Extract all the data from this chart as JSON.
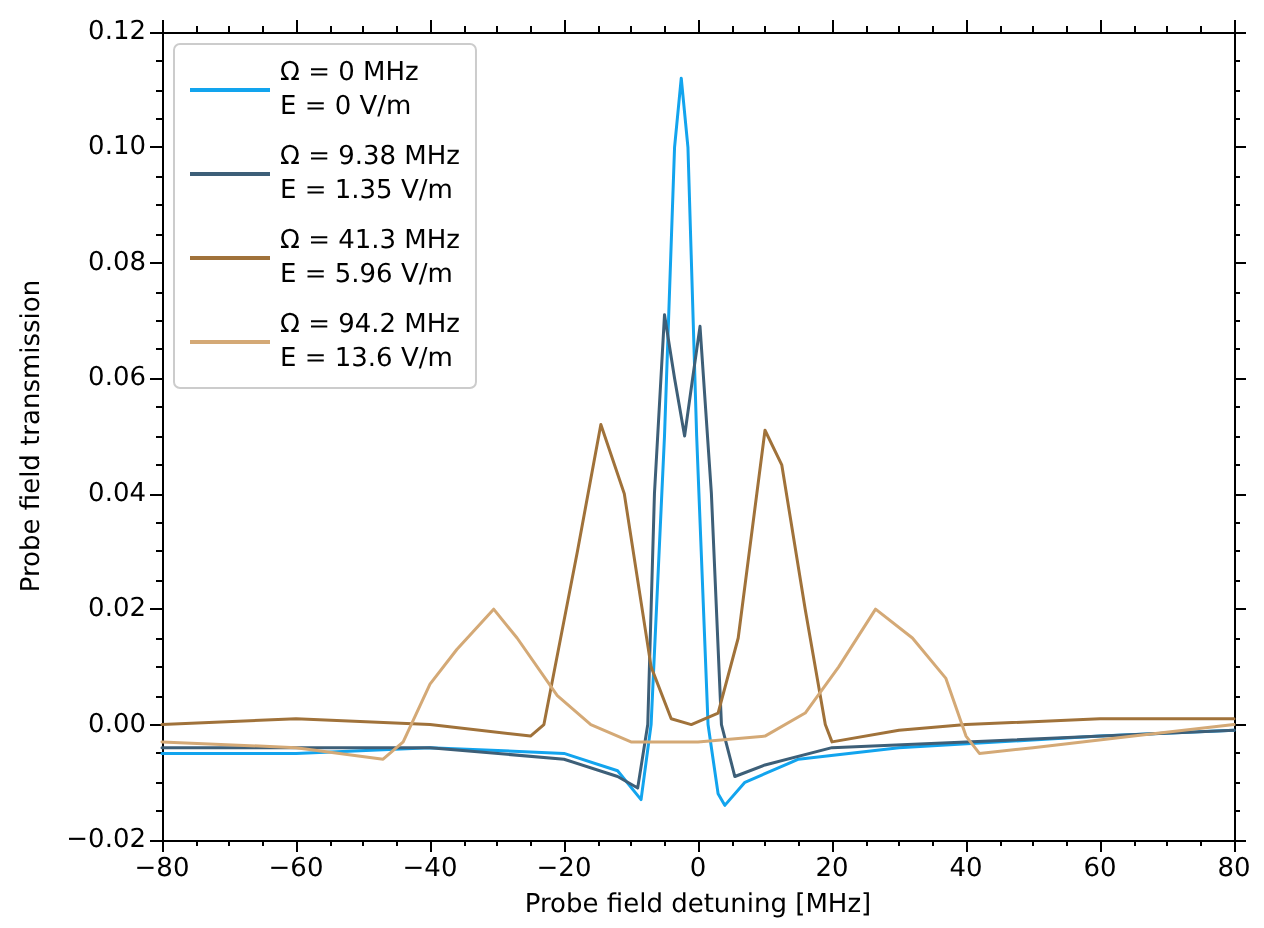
{
  "chart_data": {
    "type": "line",
    "xlabel": "Probe field detuning [MHz]",
    "ylabel": "Probe field transmission",
    "xlim": [
      -80,
      80
    ],
    "xticks": [
      -80,
      -60,
      -40,
      -20,
      0,
      20,
      40,
      60,
      80
    ],
    "ylim": [
      -0.02,
      0.12
    ],
    "yticks": [
      -0.02,
      {
        "value": 0,
        "label": "0.00"
      },
      0.02,
      0.04,
      0.06,
      0.08,
      {
        "value": 0.1,
        "label": "0.10"
      },
      0.12
    ],
    "grid": false,
    "legend": "top left",
    "marker": "none",
    "line_style": "solid",
    "series": [
      {
        "name": "Ω = 0 MHz\nE = 0 V/m",
        "color": "#12a4ee",
        "x": [
          -80,
          -60,
          -40,
          -20,
          -12,
          -8.5,
          -7,
          -5,
          -3.5,
          -2.5,
          -1.5,
          -0.2,
          1.5,
          3,
          4,
          7,
          15,
          30,
          60,
          80
        ],
        "values": [
          -0.005,
          -0.005,
          -0.004,
          -0.005,
          -0.008,
          -0.013,
          0,
          0.05,
          0.1,
          0.112,
          0.1,
          0.05,
          0,
          -0.012,
          -0.014,
          -0.01,
          -0.006,
          -0.004,
          -0.002,
          -0.001
        ]
      },
      {
        "name": "Ω = 9.38 MHz\nE = 1.35 V/m",
        "color": "#3d5f78",
        "x": [
          -80,
          -60,
          -40,
          -20,
          -12,
          -9,
          -7.5,
          -6.5,
          -5,
          -3.5,
          -2,
          -0.8,
          0.3,
          2,
          3.5,
          5.5,
          10,
          20,
          40,
          80
        ],
        "values": [
          -0.004,
          -0.004,
          -0.004,
          -0.006,
          -0.009,
          -0.011,
          0,
          0.04,
          0.071,
          0.06,
          0.05,
          0.06,
          0.069,
          0.04,
          0,
          -0.009,
          -0.007,
          -0.004,
          -0.003,
          -0.001
        ]
      },
      {
        "name": "Ω = 41.3 MHz\nE = 5.96 V/m",
        "color": "#a0723a",
        "x": [
          -80,
          -60,
          -40,
          -25,
          -23,
          -18,
          -14.5,
          -11,
          -7,
          -4,
          -1,
          3,
          6,
          10,
          12.5,
          16,
          19,
          20,
          30,
          40,
          60,
          80
        ],
        "values": [
          0,
          0.001,
          0,
          -0.002,
          0,
          0.03,
          0.052,
          0.04,
          0.01,
          0.001,
          0,
          0.002,
          0.015,
          0.051,
          0.045,
          0.02,
          0,
          -0.003,
          -0.001,
          0,
          0.001,
          0.001
        ]
      },
      {
        "name": "Ω = 94.2 MHz\nE = 13.6 V/m",
        "color": "#d4a976",
        "x": [
          -80,
          -60,
          -47,
          -44,
          -40,
          -36,
          -30.5,
          -27,
          -21,
          -16,
          -10,
          0,
          10,
          16,
          21,
          26.5,
          32,
          37,
          40,
          42,
          50,
          65,
          80
        ],
        "values": [
          -0.003,
          -0.004,
          -0.006,
          -0.003,
          0.007,
          0.013,
          0.02,
          0.015,
          0.005,
          0,
          -0.003,
          -0.003,
          -0.002,
          0.002,
          0.01,
          0.02,
          0.015,
          0.008,
          -0.002,
          -0.005,
          -0.004,
          -0.002,
          0
        ]
      }
    ]
  }
}
